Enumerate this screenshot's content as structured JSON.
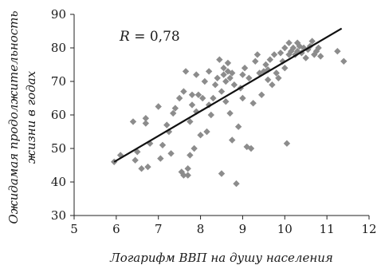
{
  "chart_data": {
    "type": "scatter",
    "title": "",
    "xlabel": "Логарифм ВВП на душу населения",
    "ylabel_line1": "Ожидамая продолжительность",
    "ylabel_line2": "жизни в годах",
    "xlim": [
      5,
      12
    ],
    "ylim": [
      30,
      90
    ],
    "x_ticks": [
      "5",
      "6",
      "7",
      "8",
      "9",
      "10",
      "11",
      "12"
    ],
    "y_ticks": [
      "30",
      "40",
      "50",
      "60",
      "70",
      "80",
      "90"
    ],
    "grid": false,
    "annotation": {
      "symbol": "R",
      "value": " = 0,78"
    },
    "marker_color": "#8c8c8c",
    "trend_line": {
      "x": [
        5.95,
        11.35
      ],
      "y": [
        46.0,
        85.8
      ],
      "color": "#111111"
    },
    "points": [
      [
        5.95,
        46.0
      ],
      [
        6.1,
        48.0
      ],
      [
        6.4,
        58.0
      ],
      [
        6.45,
        46.5
      ],
      [
        6.5,
        49.0
      ],
      [
        6.6,
        44.0
      ],
      [
        6.7,
        59.0
      ],
      [
        6.7,
        57.5
      ],
      [
        6.75,
        44.5
      ],
      [
        6.8,
        51.5
      ],
      [
        7.0,
        62.5
      ],
      [
        7.05,
        47.0
      ],
      [
        7.1,
        51.0
      ],
      [
        7.2,
        57.0
      ],
      [
        7.25,
        55.0
      ],
      [
        7.3,
        48.5
      ],
      [
        7.35,
        60.5
      ],
      [
        7.4,
        62.0
      ],
      [
        7.5,
        65.0
      ],
      [
        7.55,
        43.0
      ],
      [
        7.6,
        42.0
      ],
      [
        7.6,
        67.0
      ],
      [
        7.65,
        73.0
      ],
      [
        7.7,
        42.0
      ],
      [
        7.7,
        44.0
      ],
      [
        7.75,
        48.0
      ],
      [
        7.75,
        58.0
      ],
      [
        7.8,
        66.0
      ],
      [
        7.8,
        63.0
      ],
      [
        7.85,
        50.0
      ],
      [
        7.9,
        72.0
      ],
      [
        7.9,
        61.0
      ],
      [
        8.0,
        54.0
      ],
      [
        8.05,
        65.0
      ],
      [
        8.1,
        70.0
      ],
      [
        8.15,
        55.0
      ],
      [
        8.2,
        73.0
      ],
      [
        8.25,
        60.0
      ],
      [
        8.3,
        65.0
      ],
      [
        8.35,
        69.0
      ],
      [
        8.4,
        71.0
      ],
      [
        8.45,
        76.5
      ],
      [
        8.5,
        67.0
      ],
      [
        8.5,
        42.5
      ],
      [
        8.55,
        72.0
      ],
      [
        8.6,
        64.0
      ],
      [
        8.6,
        70.0
      ],
      [
        8.65,
        73.0
      ],
      [
        8.7,
        71.0
      ],
      [
        8.7,
        60.5
      ],
      [
        8.75,
        52.5
      ],
      [
        8.8,
        69.0
      ],
      [
        8.85,
        39.5
      ],
      [
        8.9,
        56.5
      ],
      [
        8.95,
        68.0
      ],
      [
        9.0,
        72.0
      ],
      [
        9.0,
        65.0
      ],
      [
        9.05,
        74.0
      ],
      [
        9.1,
        50.5
      ],
      [
        9.15,
        71.0
      ],
      [
        9.2,
        50.0
      ],
      [
        9.25,
        63.5
      ],
      [
        9.3,
        76.0
      ],
      [
        9.35,
        78.0
      ],
      [
        9.4,
        72.5
      ],
      [
        9.45,
        66.0
      ],
      [
        9.5,
        73.0
      ],
      [
        9.55,
        75.0
      ],
      [
        9.6,
        70.5
      ],
      [
        9.7,
        69.0
      ],
      [
        9.75,
        78.0
      ],
      [
        9.8,
        72.5
      ],
      [
        9.85,
        71.0
      ],
      [
        9.9,
        78.5
      ],
      [
        9.95,
        76.0
      ],
      [
        10.0,
        74.0
      ],
      [
        10.05,
        51.5
      ],
      [
        10.1,
        78.0
      ],
      [
        10.15,
        79.0
      ],
      [
        10.2,
        80.0
      ],
      [
        10.25,
        78.0
      ],
      [
        10.3,
        81.5
      ],
      [
        10.35,
        80.5
      ],
      [
        10.4,
        78.5
      ],
      [
        10.45,
        80.0
      ],
      [
        10.5,
        77.0
      ],
      [
        10.55,
        79.5
      ],
      [
        10.6,
        80.5
      ],
      [
        10.65,
        82.0
      ],
      [
        10.7,
        78.0
      ],
      [
        10.75,
        79.0
      ],
      [
        10.8,
        80.0
      ],
      [
        10.85,
        77.5
      ],
      [
        11.25,
        79.0
      ],
      [
        11.4,
        76.0
      ],
      [
        8.55,
        74.0
      ],
      [
        8.65,
        75.5
      ],
      [
        8.75,
        72.5
      ],
      [
        9.6,
        73.5
      ],
      [
        9.65,
        76.5
      ],
      [
        10.0,
        80.0
      ],
      [
        10.1,
        81.5
      ],
      [
        10.3,
        79.0
      ],
      [
        7.95,
        66.0
      ],
      [
        8.2,
        63.0
      ]
    ]
  }
}
